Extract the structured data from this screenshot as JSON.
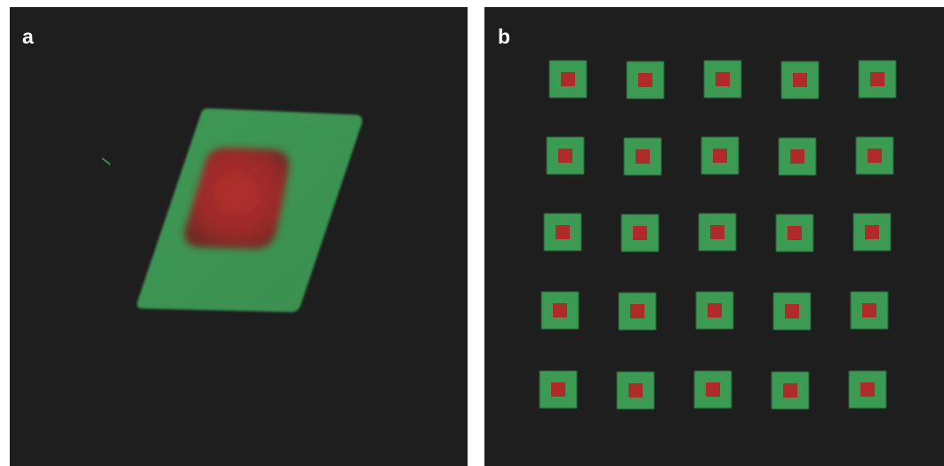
{
  "panels": [
    {
      "label": "a"
    },
    {
      "label": "b"
    }
  ],
  "colors": {
    "background": "#1e1e1f",
    "label": "#ffffff",
    "green_frame": "#3a9b52",
    "red_core": "#b02a2a"
  },
  "array_grid": {
    "rows": 5,
    "cols": 5
  }
}
